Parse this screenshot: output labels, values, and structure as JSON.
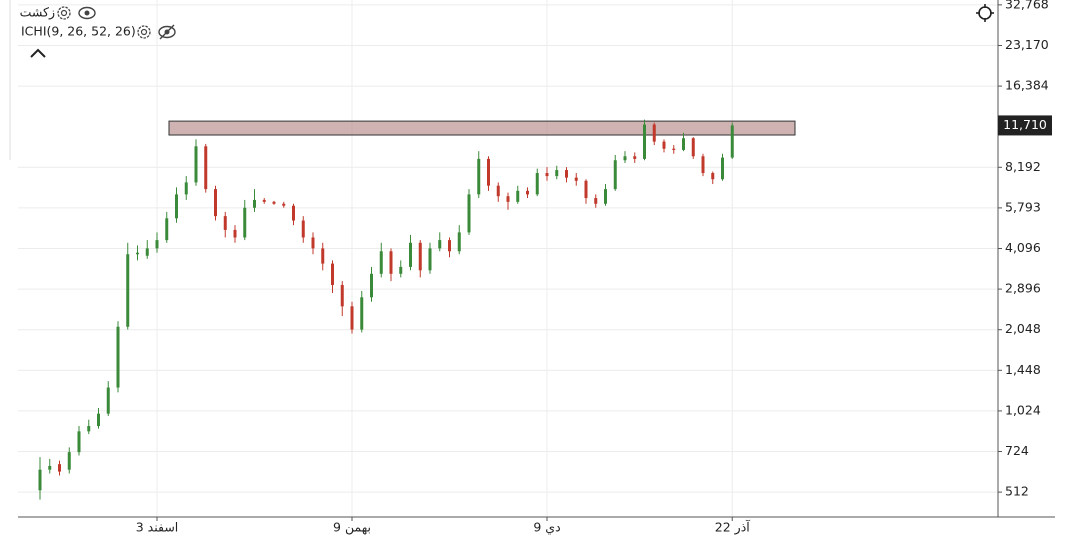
{
  "chart_data": {
    "type": "candlestick",
    "title": "زکشت",
    "indicator": "ICHI(9, 26, 52, 26)",
    "log_scale": true,
    "grid": true,
    "up_color": "#3a8a3a",
    "down_color": "#c0392b",
    "zone_color": "#b58a8a",
    "categories": [
      null,
      null,
      null,
      null,
      null,
      null,
      null,
      null,
      null,
      null,
      null,
      null,
      "3 اسفند",
      null,
      null,
      null,
      null,
      null,
      null,
      null,
      null,
      null,
      null,
      null,
      null,
      null,
      null,
      null,
      null,
      null,
      null,
      null,
      "9 بهمن",
      null,
      null,
      null,
      null,
      null,
      null,
      null,
      null,
      null,
      null,
      null,
      null,
      null,
      null,
      null,
      null,
      null,
      null,
      null,
      "9 دي",
      null,
      null,
      null,
      null,
      null,
      null,
      null,
      null,
      null,
      null,
      null,
      null,
      null,
      null,
      null,
      null,
      null,
      null,
      "22 آذر"
    ],
    "open": [
      520,
      620,
      650,
      620,
      720,
      860,
      900,
      1000,
      1250,
      2100,
      3900,
      3850,
      4100,
      4400,
      5300,
      6500,
      7200,
      9800,
      6800,
      5400,
      4800,
      4500,
      5800,
      6200,
      6100,
      6000,
      5900,
      5200,
      4500,
      4100,
      3600,
      3000,
      2500,
      2050,
      2700,
      3300,
      4000,
      3300,
      3500,
      4300,
      3400,
      4100,
      4400,
      4000,
      4700,
      6500,
      8800,
      7000,
      6400,
      6100,
      6700,
      6500,
      7800,
      7600,
      8000,
      7500,
      7300,
      6300,
      6000,
      6800,
      8700,
      9000,
      8800,
      11800,
      10200,
      9600,
      9500,
      10500,
      9000,
      7800,
      7400,
      8900
    ],
    "high": [
      690,
      680,
      670,
      750,
      900,
      950,
      1050,
      1320,
      2200,
      4300,
      4200,
      4400,
      4700,
      5600,
      6900,
      7600,
      10400,
      10000,
      7000,
      5600,
      5000,
      6200,
      6800,
      6300,
      6150,
      6100,
      6000,
      5400,
      4700,
      4300,
      3700,
      3100,
      2600,
      2850,
      3500,
      4300,
      4100,
      3700,
      4600,
      4400,
      4300,
      4700,
      4500,
      5000,
      6800,
      9400,
      9000,
      7200,
      6600,
      7000,
      6900,
      8100,
      8200,
      8300,
      8200,
      7800,
      7400,
      6500,
      7100,
      9100,
      9400,
      9300,
      12300,
      12000,
      10400,
      9900,
      11000,
      10600,
      9200,
      7900,
      9200,
      12000
    ],
    "low": [
      480,
      600,
      590,
      600,
      700,
      840,
      880,
      980,
      1200,
      2050,
      3700,
      3750,
      3950,
      4300,
      5100,
      6200,
      7000,
      6600,
      5200,
      4500,
      4300,
      4400,
      5600,
      6000,
      5950,
      5800,
      5000,
      4300,
      3900,
      3400,
      2800,
      2300,
      1980,
      2000,
      2600,
      3200,
      3100,
      3200,
      3400,
      3200,
      3300,
      4000,
      3800,
      3900,
      4600,
      6300,
      6700,
      6100,
      5700,
      6000,
      6300,
      6400,
      7300,
      7400,
      7200,
      7000,
      6000,
      5800,
      5900,
      6700,
      8500,
      8500,
      8700,
      9900,
      9300,
      9200,
      9400,
      8800,
      7600,
      7100,
      7300,
      8800
    ],
    "close": [
      620,
      640,
      610,
      720,
      860,
      900,
      1000,
      1250,
      2100,
      3900,
      3950,
      4100,
      4400,
      5300,
      6500,
      7200,
      9800,
      6800,
      5400,
      4800,
      4500,
      5800,
      6200,
      6100,
      6000,
      5900,
      5200,
      4500,
      4100,
      3600,
      3000,
      2500,
      2050,
      2700,
      3300,
      4000,
      3300,
      3500,
      4300,
      3400,
      4100,
      4400,
      4000,
      4700,
      6500,
      8800,
      7000,
      6400,
      6100,
      6700,
      6500,
      7800,
      7600,
      8000,
      7500,
      7300,
      6300,
      6000,
      6800,
      8700,
      9000,
      8800,
      11800,
      10200,
      9600,
      9500,
      10500,
      9000,
      7800,
      7400,
      8900,
      11710
    ],
    "ylim": [
      414,
      34160
    ],
    "yticks": [
      512,
      724,
      {
        "value": 1024,
        "label": "1,024"
      },
      {
        "value": 1448,
        "label": "1,448"
      },
      {
        "value": 2048,
        "label": "2,048"
      },
      {
        "value": 2896,
        "label": "2,896"
      },
      {
        "value": 4096,
        "label": "4,096"
      },
      {
        "value": 5793,
        "label": "5,793"
      },
      {
        "value": 8192,
        "label": "8,192"
      },
      {
        "value": 16384,
        "label": "16,384"
      },
      {
        "value": 23170,
        "label": "23,170"
      },
      {
        "value": 32768,
        "label": "32,768"
      }
    ],
    "last_price": {
      "value": 11710,
      "label": "11,710"
    },
    "zone": [
      10790,
      12150
    ]
  }
}
